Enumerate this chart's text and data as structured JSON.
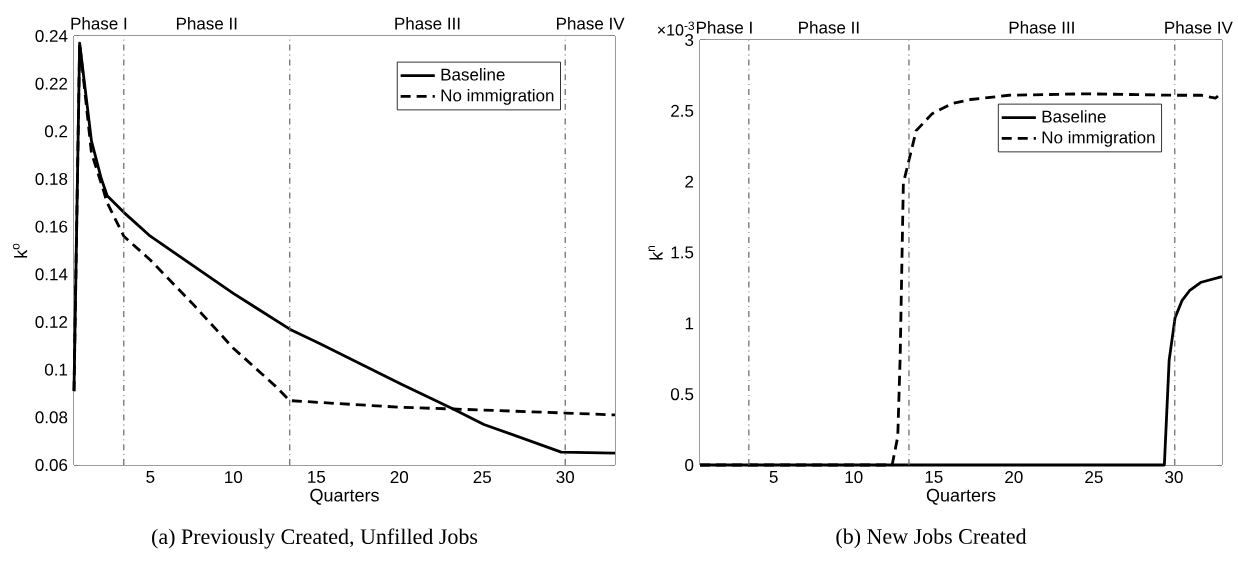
{
  "chart_data": [
    {
      "type": "line",
      "title": "(a) Previously Created, Unfilled Jobs",
      "xlabel": "Quarters",
      "ylabel": "k$^{o}$",
      "xlim": [
        0.4,
        33
      ],
      "xticks": [
        5,
        10,
        15,
        20,
        25,
        30
      ],
      "ylim": [
        0.06,
        0.24
      ],
      "yticks": [
        0.06,
        0.08,
        0.1,
        0.12,
        0.14,
        0.16,
        0.18,
        0.2,
        0.22,
        0.24
      ],
      "legend": "top right",
      "grid": false,
      "marker": "none",
      "series": [
        {
          "name": "Baseline",
          "color": "#000000",
          "line_style": "solid",
          "x": [
            0.4,
            0.74,
            1.45,
            2.05,
            2.4,
            3.4,
            5,
            10,
            13.4,
            15.2,
            20.1,
            23.25,
            25.1,
            29.76,
            33
          ],
          "values": [
            0.091,
            0.237,
            0.196,
            0.18,
            0.173,
            0.166,
            0.156,
            0.132,
            0.117,
            0.111,
            0.094,
            0.0835,
            0.077,
            0.0654,
            0.065
          ]
        },
        {
          "name": "No immigration",
          "color": "#000000",
          "line_style": "dashed",
          "x": [
            0.4,
            0.74,
            1.45,
            2.05,
            2.4,
            3.4,
            5,
            7.5,
            10,
            12.55,
            13.4,
            20.1,
            23.25,
            30,
            33
          ],
          "values": [
            0.091,
            0.237,
            0.191,
            0.178,
            0.17,
            0.156,
            0.146,
            0.128,
            0.109,
            0.093,
            0.087,
            0.0842,
            0.0835,
            0.0818,
            0.081
          ]
        }
      ],
      "ref_lines": [
        {
          "axis": "x",
          "value": 3.4,
          "color": "#666666",
          "line_style": "dashdot"
        },
        {
          "axis": "x",
          "value": 13.4,
          "color": "#666666",
          "line_style": "dashdot"
        },
        {
          "axis": "x",
          "value": 30,
          "color": "#666666",
          "line_style": "dashdot"
        }
      ],
      "bands": [
        {
          "axis": "x",
          "from": 0.4,
          "to": 3.4,
          "label": "Phase I",
          "color": "#ffffff"
        },
        {
          "axis": "x",
          "from": 3.4,
          "to": 13.4,
          "label": "Phase II",
          "color": "#ffffff"
        },
        {
          "axis": "x",
          "from": 13.4,
          "to": 30,
          "label": "Phase III",
          "color": "#ffffff"
        },
        {
          "axis": "x",
          "from": 30,
          "to": 33,
          "label": "Phase IV",
          "color": "#ffffff"
        }
      ]
    },
    {
      "type": "line",
      "title": "(b) New Jobs Created",
      "xlabel": "Quarters",
      "ylabel": "k$^{n}$",
      "annotations": [
        "×10$^{-3}$"
      ],
      "xlim": [
        0.4,
        33
      ],
      "xticks": [
        5,
        10,
        15,
        20,
        25,
        30
      ],
      "ylim": [
        0,
        3
      ],
      "yticks": [
        0,
        0.5,
        1,
        1.5,
        2,
        2.5,
        3
      ],
      "legend": "right",
      "grid": false,
      "marker": "none",
      "series": [
        {
          "name": "Baseline",
          "color": "#000000",
          "line_style": "solid",
          "x": [
            0.4,
            29.4,
            29.7,
            30.07,
            30.5,
            30.97,
            31.7,
            33
          ],
          "values": [
            0,
            0,
            0.74,
            1.04,
            1.16,
            1.23,
            1.29,
            1.33
          ]
        },
        {
          "name": "No immigration",
          "color": "#000000",
          "line_style": "dashed",
          "x": [
            0.4,
            12.4,
            12.75,
            12.9,
            13.1,
            13.47,
            13.9,
            14.9,
            16.1,
            17.3,
            19.7,
            24.5,
            30,
            31.7,
            32.6,
            33
          ],
          "values": [
            0,
            0,
            0.2,
            0.76,
            1.99,
            2.16,
            2.36,
            2.48,
            2.55,
            2.58,
            2.61,
            2.62,
            2.61,
            2.61,
            2.59,
            2.63
          ]
        }
      ],
      "ref_lines": [
        {
          "axis": "x",
          "value": 3.45,
          "color": "#666666",
          "line_style": "dashdot"
        },
        {
          "axis": "x",
          "value": 13.45,
          "color": "#666666",
          "line_style": "dashdot"
        },
        {
          "axis": "x",
          "value": 30.05,
          "color": "#666666",
          "line_style": "dashdot"
        }
      ],
      "bands": [
        {
          "axis": "x",
          "from": 0.4,
          "to": 3.45,
          "label": "Phase I",
          "color": "#ffffff"
        },
        {
          "axis": "x",
          "from": 3.45,
          "to": 13.45,
          "label": "Phase II",
          "color": "#ffffff"
        },
        {
          "axis": "x",
          "from": 13.45,
          "to": 30.05,
          "label": "Phase III",
          "color": "#ffffff"
        },
        {
          "axis": "x",
          "from": 30.05,
          "to": 33,
          "label": "Phase IV",
          "color": "#ffffff"
        }
      ]
    }
  ]
}
